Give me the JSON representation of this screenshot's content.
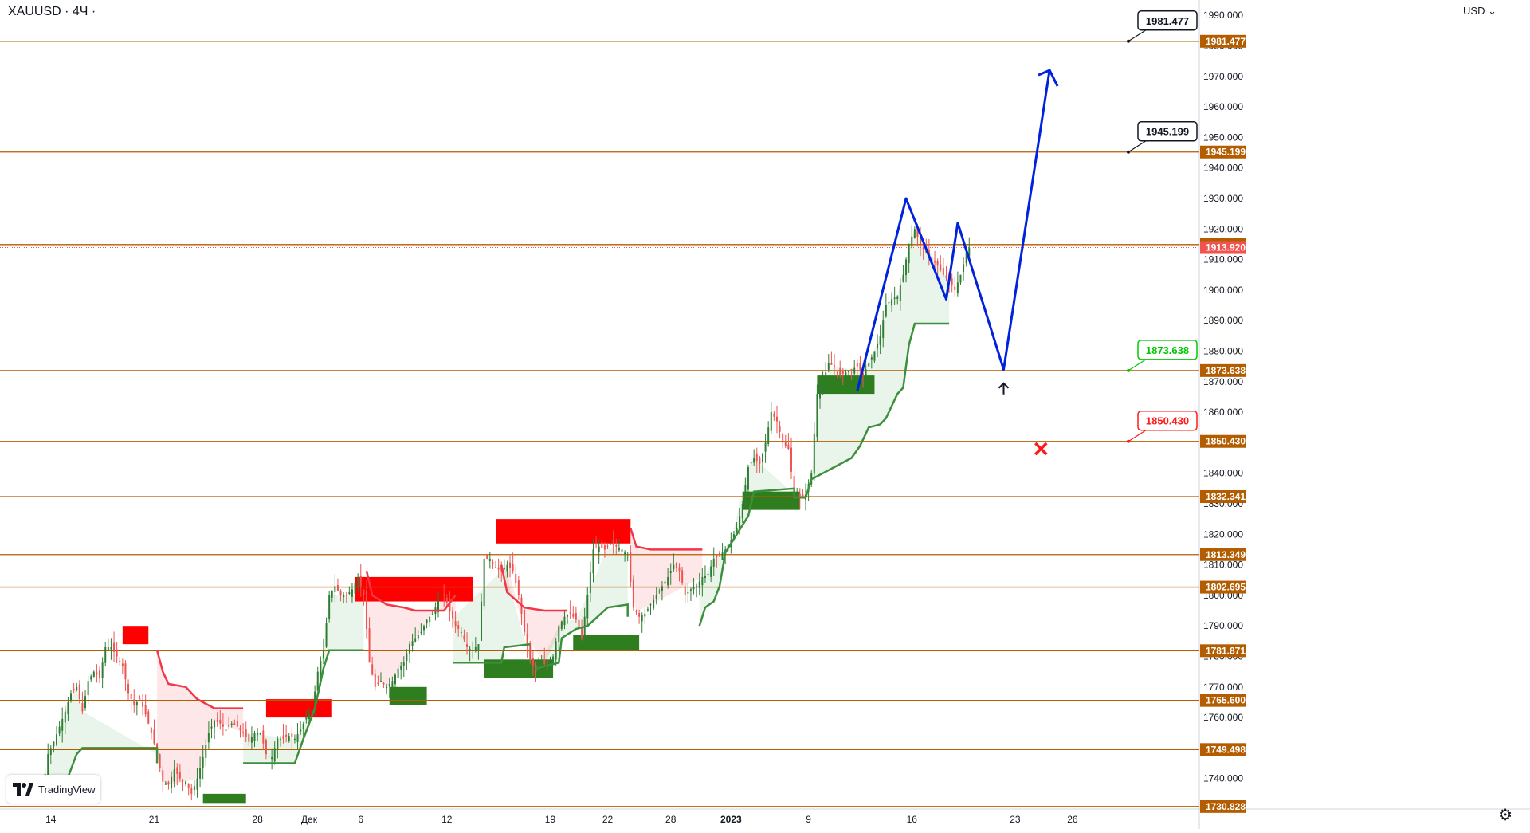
{
  "header": {
    "symbol": "XAUUSD · 4Ч ·",
    "currency": "USD"
  },
  "branding": {
    "logo_text": "TradingView",
    "logo_icon": "tradingview-logo-icon"
  },
  "settings": {
    "icon": "gear-icon"
  },
  "colors": {
    "level_line": "#b35c00",
    "current_price": "#f05350",
    "bull": "#2e7d32",
    "bear": "#ef5350",
    "trend_up_line": "#3c8f3c",
    "trend_down_line": "#f23645",
    "support_block": "#2e7d1f",
    "resistance_block": "#ff0000",
    "forecast": "#0022dd",
    "target_green": "#00c800",
    "target_red": "#ff1a1a"
  },
  "chart_data": {
    "type": "candlestick",
    "symbol": "XAUUSD",
    "timeframe": "4Ч",
    "ylim": [
      1730,
      1995
    ],
    "y_ticks": [
      1740,
      1750,
      1760,
      1770,
      1780,
      1790,
      1800,
      1810,
      1820,
      1830,
      1840,
      1850,
      1860,
      1870,
      1880,
      1890,
      1900,
      1910,
      1920,
      1930,
      1940,
      1950,
      1960,
      1970,
      1980,
      1990
    ],
    "y_tick_labels": [
      "1740.000",
      "1750.000",
      "1760.000",
      "1770.000",
      "1780.000",
      "1790.000",
      "1800.000",
      "1810.000",
      "1820.000",
      "1830.000",
      "1840.000",
      "1850.000",
      "1860.000",
      "1870.000",
      "1880.000",
      "1890.000",
      "1900.000",
      "1910.000",
      "1920.000",
      "1930.000",
      "1940.000",
      "1950.000",
      "1960.000",
      "1970.000",
      "1980.000",
      "1990.000"
    ],
    "x_axis_labels": [
      {
        "label": "14",
        "bar": 3
      },
      {
        "label": "21",
        "bar": 39
      },
      {
        "label": "28",
        "bar": 75
      },
      {
        "label": "Дек",
        "bar": 93
      },
      {
        "label": "6",
        "bar": 111
      },
      {
        "label": "12",
        "bar": 141
      },
      {
        "label": "19",
        "bar": 177
      },
      {
        "label": "22",
        "bar": 197
      },
      {
        "label": "28",
        "bar": 219
      },
      {
        "label": "2023",
        "bar": 240,
        "bold": true
      },
      {
        "label": "9",
        "bar": 267
      },
      {
        "label": "16",
        "bar": 303
      },
      {
        "label": "23",
        "bar": 339
      },
      {
        "label": "26",
        "bar": 359
      }
    ],
    "bar_count_total": 404,
    "price_levels": [
      {
        "value": 1981.477,
        "label": "1981.477"
      },
      {
        "value": 1945.199,
        "label": "1945.199"
      },
      {
        "value": 1914.902,
        "label": "1914.902"
      },
      {
        "value": 1873.638,
        "label": "1873.638"
      },
      {
        "value": 1850.43,
        "label": "1850.430"
      },
      {
        "value": 1832.341,
        "label": "1832.341"
      },
      {
        "value": 1813.349,
        "label": "1813.349"
      },
      {
        "value": 1802.695,
        "label": "1802.695"
      },
      {
        "value": 1781.871,
        "label": "1781.871"
      },
      {
        "value": 1765.6,
        "label": "1765.600"
      },
      {
        "value": 1749.498,
        "label": "1749.498"
      },
      {
        "value": 1730.828,
        "label": "1730.828"
      }
    ],
    "current_price": {
      "value": 1913.92,
      "label": "1913.920"
    },
    "targets": [
      {
        "value": 1981.477,
        "label": "1981.477",
        "kind": "black"
      },
      {
        "value": 1945.199,
        "label": "1945.199",
        "kind": "black"
      },
      {
        "value": 1873.638,
        "label": "1873.638",
        "kind": "green"
      },
      {
        "value": 1850.43,
        "label": "1850.430",
        "kind": "red"
      }
    ],
    "close_path": [
      [
        0,
        1735
      ],
      [
        2,
        1748
      ],
      [
        4,
        1752
      ],
      [
        6,
        1757
      ],
      [
        8,
        1762
      ],
      [
        10,
        1768
      ],
      [
        12,
        1770
      ],
      [
        14,
        1762
      ],
      [
        16,
        1772
      ],
      [
        18,
        1775
      ],
      [
        20,
        1773
      ],
      [
        22,
        1783
      ],
      [
        24,
        1783
      ],
      [
        26,
        1780
      ],
      [
        28,
        1777
      ],
      [
        30,
        1768
      ],
      [
        32,
        1764
      ],
      [
        34,
        1766
      ],
      [
        36,
        1761
      ],
      [
        38,
        1755
      ],
      [
        40,
        1748
      ],
      [
        42,
        1739
      ],
      [
        44,
        1738
      ],
      [
        46,
        1743
      ],
      [
        48,
        1740
      ],
      [
        50,
        1739
      ],
      [
        52,
        1735
      ],
      [
        54,
        1740
      ],
      [
        56,
        1747
      ],
      [
        58,
        1755
      ],
      [
        60,
        1759
      ],
      [
        62,
        1758
      ],
      [
        64,
        1756
      ],
      [
        66,
        1758
      ],
      [
        68,
        1757
      ],
      [
        70,
        1755
      ],
      [
        72,
        1752
      ],
      [
        74,
        1755
      ],
      [
        76,
        1755
      ],
      [
        78,
        1748
      ],
      [
        80,
        1747
      ],
      [
        82,
        1753
      ],
      [
        84,
        1753
      ],
      [
        86,
        1754
      ],
      [
        88,
        1753
      ],
      [
        90,
        1756
      ],
      [
        92,
        1760
      ],
      [
        94,
        1762
      ],
      [
        96,
        1775
      ],
      [
        98,
        1782
      ],
      [
        100,
        1800
      ],
      [
        102,
        1803
      ],
      [
        104,
        1800
      ],
      [
        106,
        1800
      ],
      [
        108,
        1802
      ],
      [
        110,
        1806
      ],
      [
        112,
        1800
      ],
      [
        114,
        1778
      ],
      [
        116,
        1770
      ],
      [
        118,
        1772
      ],
      [
        120,
        1770
      ],
      [
        122,
        1772
      ],
      [
        124,
        1776
      ],
      [
        126,
        1778
      ],
      [
        128,
        1784
      ],
      [
        130,
        1786
      ],
      [
        132,
        1788
      ],
      [
        134,
        1792
      ],
      [
        136,
        1794
      ],
      [
        138,
        1798
      ],
      [
        140,
        1800
      ],
      [
        142,
        1795
      ],
      [
        144,
        1790
      ],
      [
        146,
        1788
      ],
      [
        148,
        1783
      ],
      [
        150,
        1782
      ],
      [
        152,
        1784
      ],
      [
        154,
        1812
      ],
      [
        156,
        1812
      ],
      [
        158,
        1809
      ],
      [
        160,
        1808
      ],
      [
        162,
        1810
      ],
      [
        164,
        1808
      ],
      [
        166,
        1800
      ],
      [
        168,
        1788
      ],
      [
        170,
        1779
      ],
      [
        172,
        1775
      ],
      [
        174,
        1778
      ],
      [
        176,
        1777
      ],
      [
        178,
        1780
      ],
      [
        180,
        1790
      ],
      [
        182,
        1793
      ],
      [
        184,
        1794
      ],
      [
        186,
        1792
      ],
      [
        188,
        1786
      ],
      [
        190,
        1800
      ],
      [
        192,
        1815
      ],
      [
        194,
        1816
      ],
      [
        196,
        1815
      ],
      [
        198,
        1817
      ],
      [
        200,
        1816
      ],
      [
        202,
        1815
      ],
      [
        204,
        1813
      ],
      [
        206,
        1796
      ],
      [
        208,
        1793
      ],
      [
        210,
        1794
      ],
      [
        212,
        1797
      ],
      [
        214,
        1800
      ],
      [
        216,
        1803
      ],
      [
        218,
        1806
      ],
      [
        220,
        1810
      ],
      [
        222,
        1808
      ],
      [
        224,
        1800
      ],
      [
        226,
        1802
      ],
      [
        228,
        1803
      ],
      [
        230,
        1806
      ],
      [
        232,
        1807
      ],
      [
        234,
        1812
      ],
      [
        236,
        1813
      ],
      [
        238,
        1815
      ],
      [
        240,
        1818
      ],
      [
        242,
        1822
      ],
      [
        244,
        1830
      ],
      [
        246,
        1842
      ],
      [
        248,
        1845
      ],
      [
        250,
        1843
      ],
      [
        252,
        1850
      ],
      [
        254,
        1860
      ],
      [
        256,
        1857
      ],
      [
        258,
        1850
      ],
      [
        260,
        1848
      ],
      [
        262,
        1833
      ],
      [
        264,
        1832
      ],
      [
        266,
        1833
      ],
      [
        268,
        1840
      ],
      [
        270,
        1866
      ],
      [
        272,
        1870
      ],
      [
        274,
        1876
      ],
      [
        276,
        1875
      ],
      [
        278,
        1872
      ],
      [
        280,
        1873
      ],
      [
        282,
        1874
      ],
      [
        284,
        1875
      ],
      [
        286,
        1872
      ],
      [
        288,
        1876
      ],
      [
        290,
        1880
      ],
      [
        292,
        1885
      ],
      [
        294,
        1895
      ],
      [
        296,
        1897
      ],
      [
        298,
        1898
      ],
      [
        300,
        1905
      ],
      [
        302,
        1915
      ],
      [
        304,
        1920
      ],
      [
        306,
        1915
      ],
      [
        308,
        1912
      ],
      [
        310,
        1910
      ],
      [
        312,
        1908
      ],
      [
        314,
        1905
      ],
      [
        316,
        1903
      ],
      [
        318,
        1900
      ],
      [
        320,
        1905
      ],
      [
        322,
        1912
      ],
      [
        323,
        1913.9
      ]
    ],
    "trend_lines": {
      "support_up": [
        [
          [
            0,
            1732
          ],
          [
            8,
            1738
          ],
          [
            12,
            1748
          ],
          [
            14,
            1750
          ],
          [
            40,
            1750
          ],
          [
            40,
            1745
          ]
        ],
        [
          [
            70,
            1745
          ],
          [
            88,
            1745
          ],
          [
            91,
            1753
          ],
          [
            95,
            1763
          ],
          [
            98,
            1776
          ],
          [
            100,
            1782
          ],
          [
            112,
            1782
          ]
        ],
        [
          [
            143,
            1778
          ],
          [
            160,
            1778
          ],
          [
            161,
            1783
          ],
          [
            170,
            1784
          ]
        ],
        [
          [
            172,
            1776
          ],
          [
            180,
            1778
          ],
          [
            181,
            1786
          ],
          [
            186,
            1789
          ],
          [
            190,
            1790
          ],
          [
            197,
            1796
          ],
          [
            204,
            1797
          ],
          [
            204,
            1793
          ]
        ],
        [
          [
            229,
            1790
          ],
          [
            231,
            1796
          ],
          [
            234,
            1798
          ],
          [
            236,
            1803
          ],
          [
            238,
            1814
          ],
          [
            240,
            1817
          ],
          [
            246,
            1826
          ],
          [
            248,
            1834
          ],
          [
            262,
            1835
          ],
          [
            262,
            1832
          ],
          [
            266,
            1832
          ],
          [
            268,
            1838
          ],
          [
            272,
            1840
          ],
          [
            276,
            1842
          ],
          [
            282,
            1845
          ],
          [
            285,
            1849
          ],
          [
            288,
            1855
          ],
          [
            292,
            1856
          ],
          [
            294,
            1858
          ],
          [
            296,
            1862
          ],
          [
            298,
            1866
          ],
          [
            300,
            1868
          ],
          [
            302,
            1882
          ],
          [
            304,
            1889
          ],
          [
            316,
            1889
          ]
        ]
      ],
      "resistance_down": [
        [
          [
            40,
            1782
          ],
          [
            42,
            1775
          ],
          [
            44,
            1771
          ],
          [
            50,
            1770
          ],
          [
            54,
            1766
          ],
          [
            60,
            1763
          ],
          [
            70,
            1763
          ]
        ],
        [
          [
            113,
            1808
          ],
          [
            115,
            1800
          ],
          [
            120,
            1797
          ],
          [
            126,
            1796
          ],
          [
            130,
            1795
          ],
          [
            140,
            1795
          ],
          [
            144,
            1800
          ]
        ],
        [
          [
            160,
            1810
          ],
          [
            162,
            1801
          ],
          [
            168,
            1796
          ],
          [
            175,
            1795
          ],
          [
            183,
            1795
          ]
        ],
        [
          [
            205,
            1822
          ],
          [
            207,
            1816
          ],
          [
            212,
            1815
          ],
          [
            230,
            1815
          ]
        ]
      ]
    },
    "zones": {
      "resistance_blocks": [
        {
          "x0": 28,
          "x1": 37,
          "y0": 1784,
          "y1": 1790
        },
        {
          "x0": 78,
          "x1": 101,
          "y0": 1760,
          "y1": 1766
        },
        {
          "x0": 109,
          "x1": 150,
          "y0": 1798,
          "y1": 1806
        },
        {
          "x0": 158,
          "x1": 205,
          "y0": 1817,
          "y1": 1825
        }
      ],
      "support_blocks": [
        {
          "x0": 56,
          "x1": 71,
          "y0": 1732,
          "y1": 1735
        },
        {
          "x0": 121,
          "x1": 134,
          "y0": 1764,
          "y1": 1770
        },
        {
          "x0": 154,
          "x1": 178,
          "y0": 1773,
          "y1": 1779
        },
        {
          "x0": 185,
          "x1": 208,
          "y0": 1782,
          "y1": 1787
        },
        {
          "x0": 244,
          "x1": 264,
          "y0": 1828,
          "y1": 1834
        },
        {
          "x0": 270,
          "x1": 290,
          "y0": 1866,
          "y1": 1872
        }
      ]
    },
    "forecast_path": [
      [
        284,
        1867
      ],
      [
        301,
        1930
      ],
      [
        315,
        1897
      ],
      [
        319,
        1922
      ],
      [
        335,
        1874
      ],
      [
        351,
        1972
      ],
      [
        354,
        1968
      ]
    ],
    "arrow_up_marker": {
      "bar": 335,
      "value": 1870
    },
    "x_marker": {
      "bar": 348,
      "value": 1848
    }
  }
}
